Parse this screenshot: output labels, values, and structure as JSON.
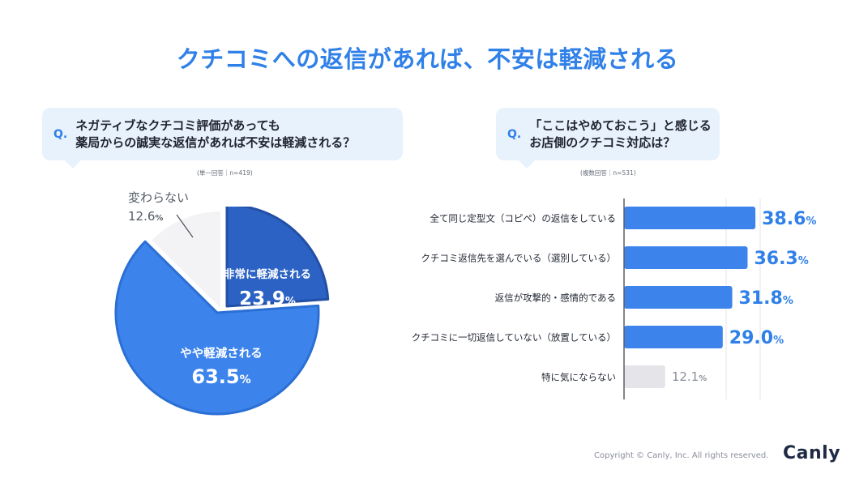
{
  "title": "クチコミへの返信があれば、不安は軽減される",
  "left_question": {
    "q_mark": "Q.",
    "line1": "ネガティブなクチコミ評価があっても",
    "line2": "薬局からの誠実な返信があれば不安は軽減される？",
    "note": "(単一回答｜n=419)"
  },
  "right_question": {
    "q_mark": "Q.",
    "line1": "「ここはやめておこう」と感じる",
    "line2": "お店側のクチコミ対応は？",
    "note": "(複数回答｜n=531)"
  },
  "chart_data": [
    {
      "type": "pie",
      "slices": [
        {
          "label": "非常に軽減される",
          "value": 23.9,
          "display": "23.9",
          "unit": "%",
          "color": "#2b62c4"
        },
        {
          "label": "やや軽減される",
          "value": 63.5,
          "display": "63.5",
          "unit": "%",
          "color": "#3c84ec"
        },
        {
          "label": "変わらない",
          "value": 12.6,
          "display": "12.6",
          "unit": "%",
          "color": "#f3f3f6"
        }
      ]
    },
    {
      "type": "bar",
      "orientation": "horizontal",
      "categories": [
        "全て同じ定型文（コピペ）の返信をしている",
        "クチコミ返信先を選んでいる（選別している）",
        "返信が攻撃的・感情的である",
        "クチコミに一切返信していない（放置している）",
        "特に気にならない"
      ],
      "values": [
        38.6,
        36.3,
        31.8,
        29.0,
        12.1
      ],
      "display": [
        "38.6",
        "36.3",
        "31.8",
        "29.0",
        "12.1"
      ],
      "unit": "%",
      "highlight_color": "#3c84ec",
      "muted_color": "#e4e4e9",
      "grid": true
    }
  ],
  "footer": {
    "copyright": "Copyright © Canly, Inc. All rights reserved.",
    "logo": "Canly"
  }
}
